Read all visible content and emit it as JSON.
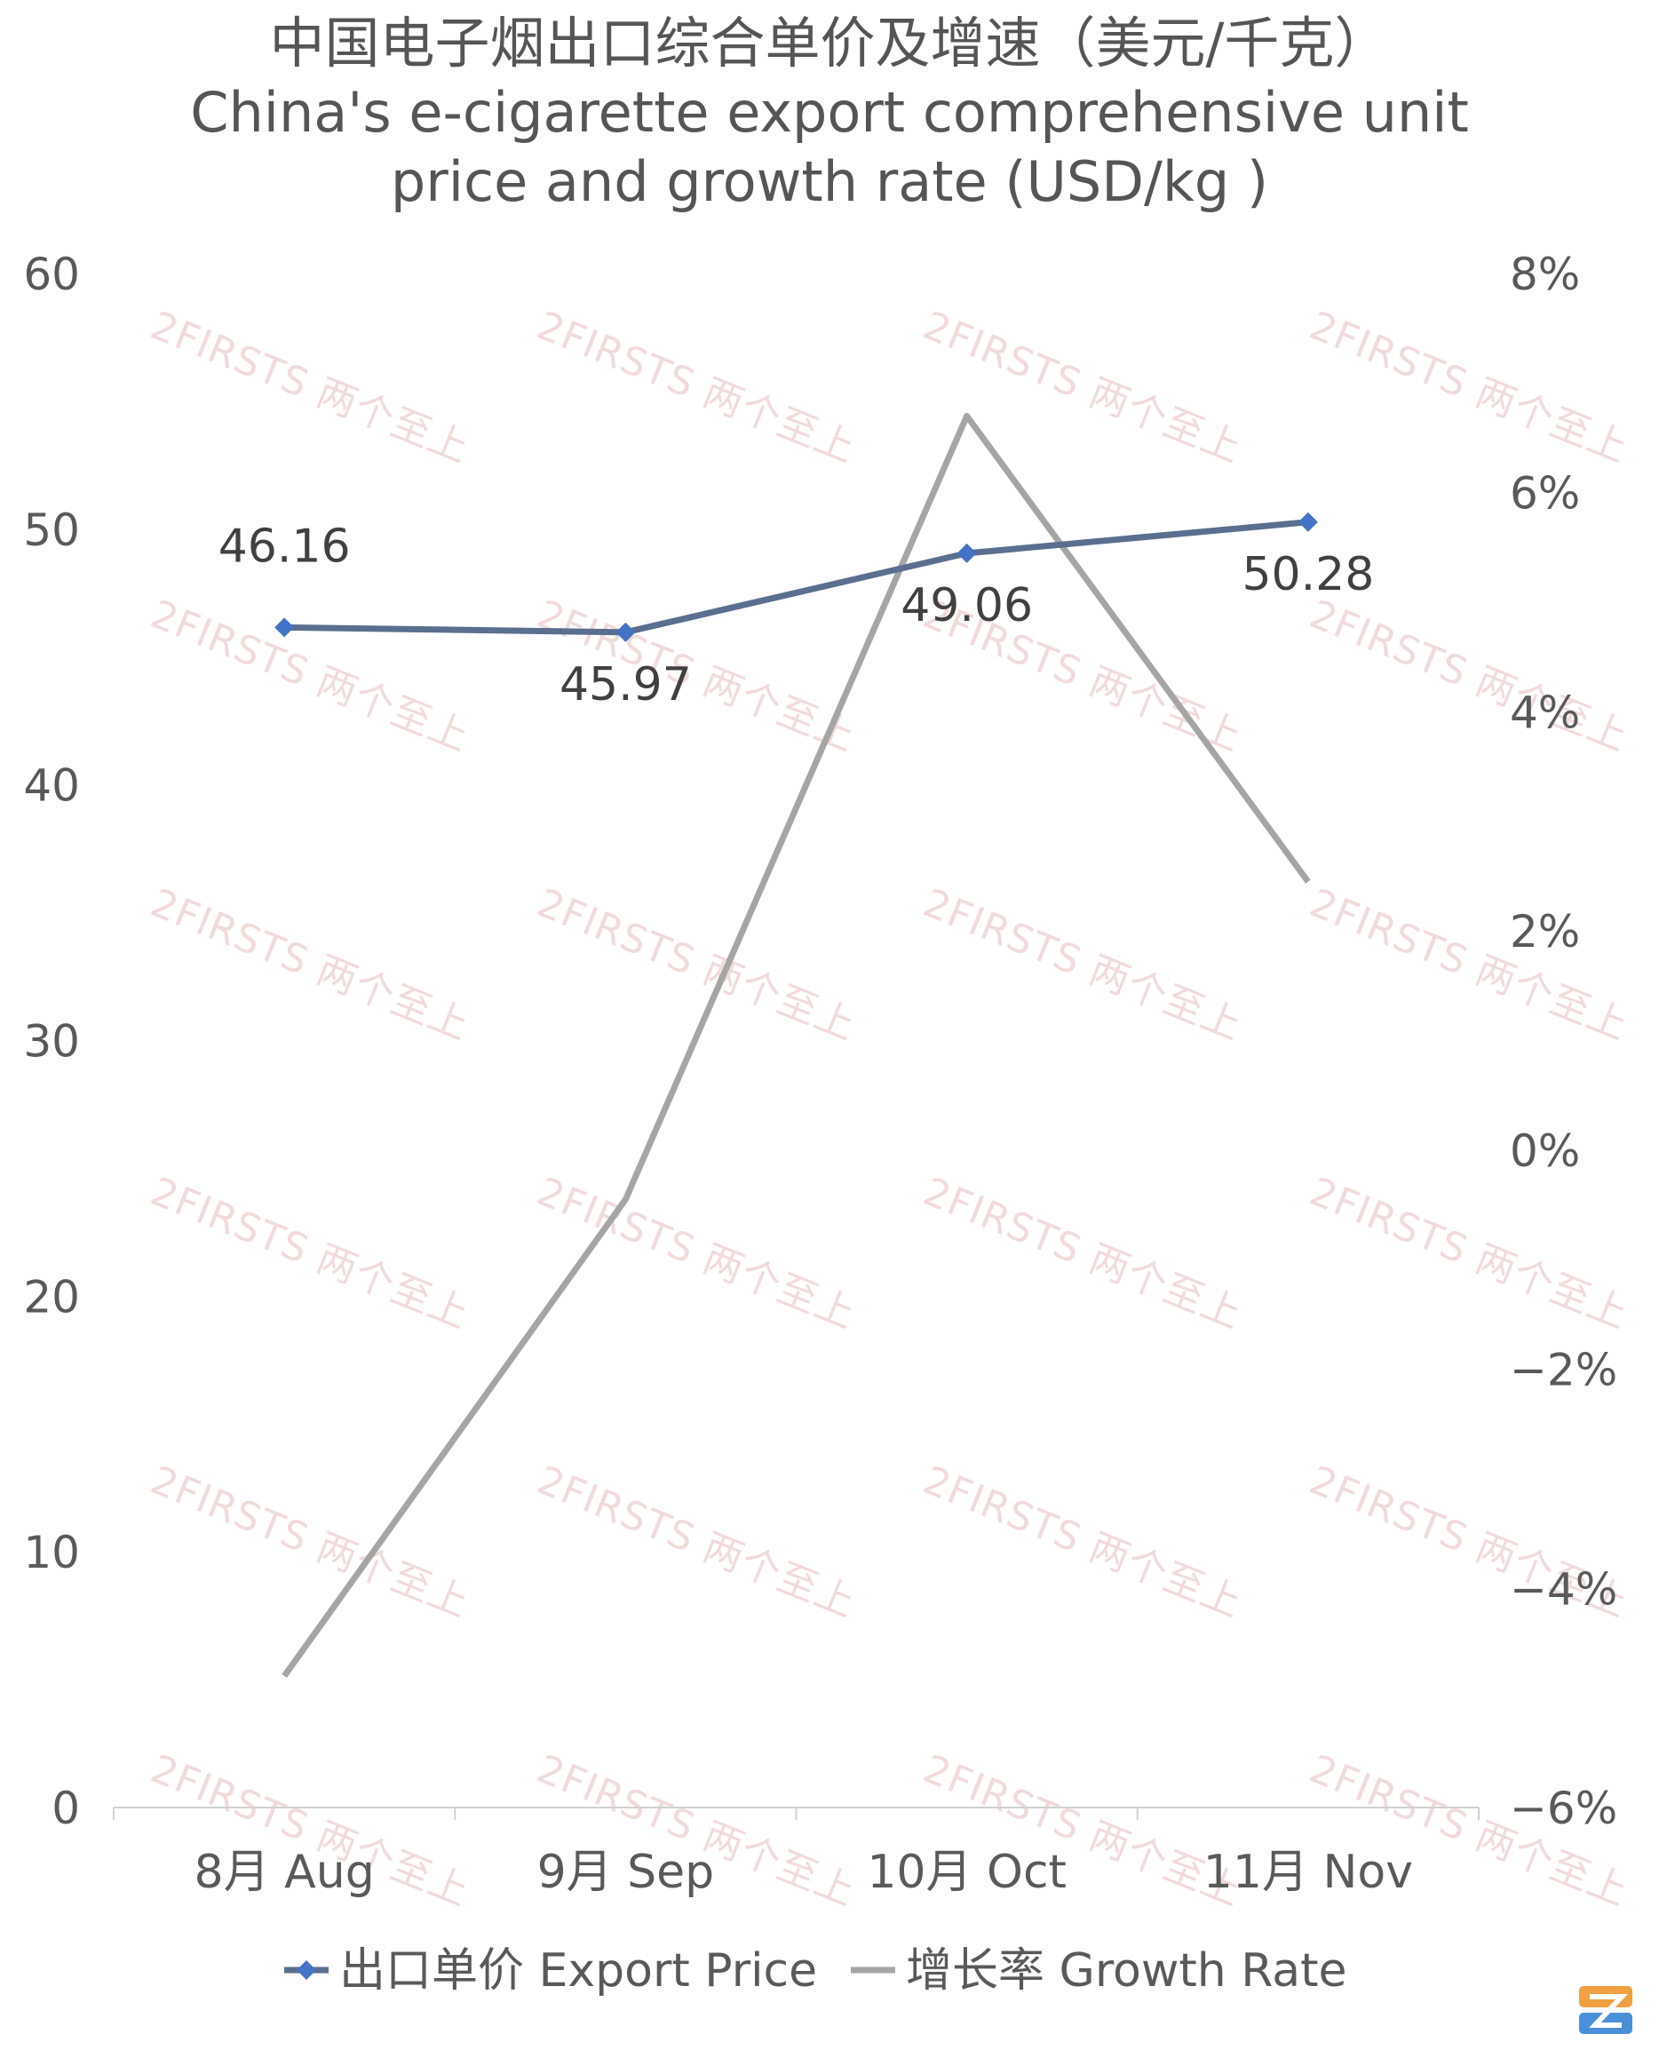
{
  "title_zh": "中国电子烟出口综合单价及增速（美元/千克）",
  "title_en_line1": "China's e-cigarette export comprehensive unit",
  "title_en_line2": "price and growth rate (USD/kg )",
  "watermark": "2FIRSTS 两个至上",
  "chart_data": {
    "type": "line",
    "categories": [
      "8月 Aug",
      "9月 Sep",
      "10月 Oct",
      "11月 Nov"
    ],
    "y_left": {
      "min": 0,
      "max": 60,
      "ticks": [
        "0",
        "10",
        "20",
        "30",
        "40",
        "50",
        "60"
      ]
    },
    "y_right": {
      "min": -6,
      "max": 8,
      "ticks": [
        "−6%",
        "−4%",
        "−2%",
        "0%",
        "2%",
        "4%",
        "6%",
        "8%"
      ]
    },
    "series": [
      {
        "name": "出口单价 Export Price",
        "axis": "left",
        "color": "#5a6e8f",
        "marker_color": "#4472c4",
        "values": [
          46.16,
          45.97,
          49.06,
          50.28
        ],
        "labels": [
          "46.16",
          "45.97",
          "49.06",
          "50.28"
        ]
      },
      {
        "name": "增长率 Growth Rate",
        "axis": "right",
        "color": "#a5a5a5",
        "values": [
          -4.8,
          -0.45,
          6.7,
          2.45
        ]
      }
    ],
    "legend_position": "bottom",
    "grid": false
  }
}
